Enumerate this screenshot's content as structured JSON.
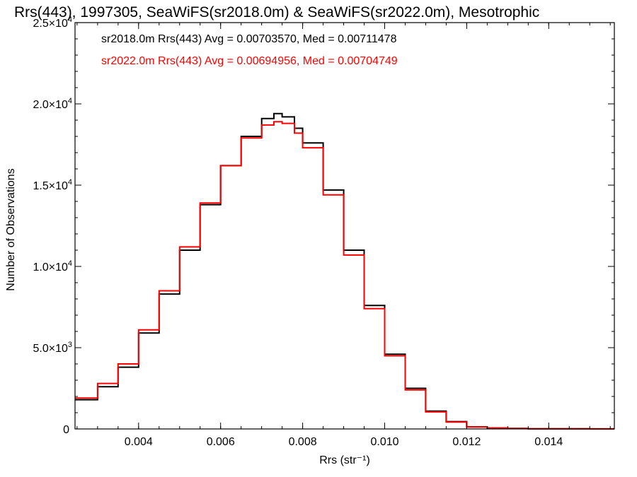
{
  "chart_data": {
    "type": "line",
    "title": "Rrs(443), 1997305, SeaWiFS(sr2018.0m) & SeaWiFS(sr2022.0m), Mesotrophic",
    "xlabel": "Rrs (str⁻¹)",
    "ylabel": "Number of Observations",
    "xlim": [
      0.00245,
      0.0156
    ],
    "ylim": [
      0,
      25000
    ],
    "x_tick_labels": [
      "0.004",
      "0.006",
      "0.008",
      "0.010",
      "0.012",
      "0.014"
    ],
    "x_ticks": [
      0.004,
      0.006,
      0.008,
      0.01,
      0.012,
      0.014
    ],
    "y_ticks": [
      {
        "value": 0,
        "mant": "0",
        "exp": ""
      },
      {
        "value": 5000,
        "mant": "5.0×10",
        "exp": "3"
      },
      {
        "value": 10000,
        "mant": "1.0×10",
        "exp": "4"
      },
      {
        "value": 15000,
        "mant": "1.5×10",
        "exp": "4"
      },
      {
        "value": 20000,
        "mant": "2.0×10",
        "exp": "4"
      },
      {
        "value": 25000,
        "mant": "2.5×10",
        "exp": "4"
      }
    ],
    "annotations": [
      {
        "text": "sr2018.0m Rrs(443) Avg = 0.00703570, Med = 0.00711478",
        "color": "#000000"
      },
      {
        "text": "sr2022.0m Rrs(443) Avg = 0.00694956, Med = 0.00704749",
        "color": "#ff0000"
      }
    ],
    "series": [
      {
        "color": "#000000",
        "x": [
          0.00245,
          0.003,
          0.0035,
          0.004,
          0.0045,
          0.005,
          0.0055,
          0.006,
          0.0065,
          0.007,
          0.0073,
          0.0075,
          0.0078,
          0.008,
          0.0085,
          0.009,
          0.0095,
          0.01,
          0.0105,
          0.011,
          0.0115,
          0.012,
          0.0125,
          0.013,
          0.0135,
          0.014,
          0.015,
          0.0156
        ],
        "y": [
          1800,
          2600,
          3800,
          5900,
          8300,
          11000,
          13800,
          16200,
          18000,
          19100,
          19400,
          19200,
          18500,
          17600,
          14700,
          11000,
          7600,
          4600,
          2500,
          1100,
          450,
          130,
          60,
          30,
          15,
          10,
          5,
          5
        ]
      },
      {
        "color": "#ff0000",
        "x": [
          0.00245,
          0.003,
          0.0035,
          0.004,
          0.0045,
          0.005,
          0.0055,
          0.006,
          0.0065,
          0.007,
          0.0073,
          0.0075,
          0.0078,
          0.008,
          0.0085,
          0.009,
          0.0095,
          0.01,
          0.0105,
          0.011,
          0.0115,
          0.012,
          0.0125,
          0.013,
          0.0135,
          0.014,
          0.015,
          0.0156
        ],
        "y": [
          1900,
          2800,
          4000,
          6100,
          8500,
          11200,
          13900,
          16200,
          17900,
          18700,
          18900,
          18800,
          18200,
          17300,
          14400,
          10700,
          7400,
          4500,
          2400,
          1050,
          420,
          120,
          55,
          28,
          14,
          9,
          5,
          5
        ]
      }
    ]
  }
}
